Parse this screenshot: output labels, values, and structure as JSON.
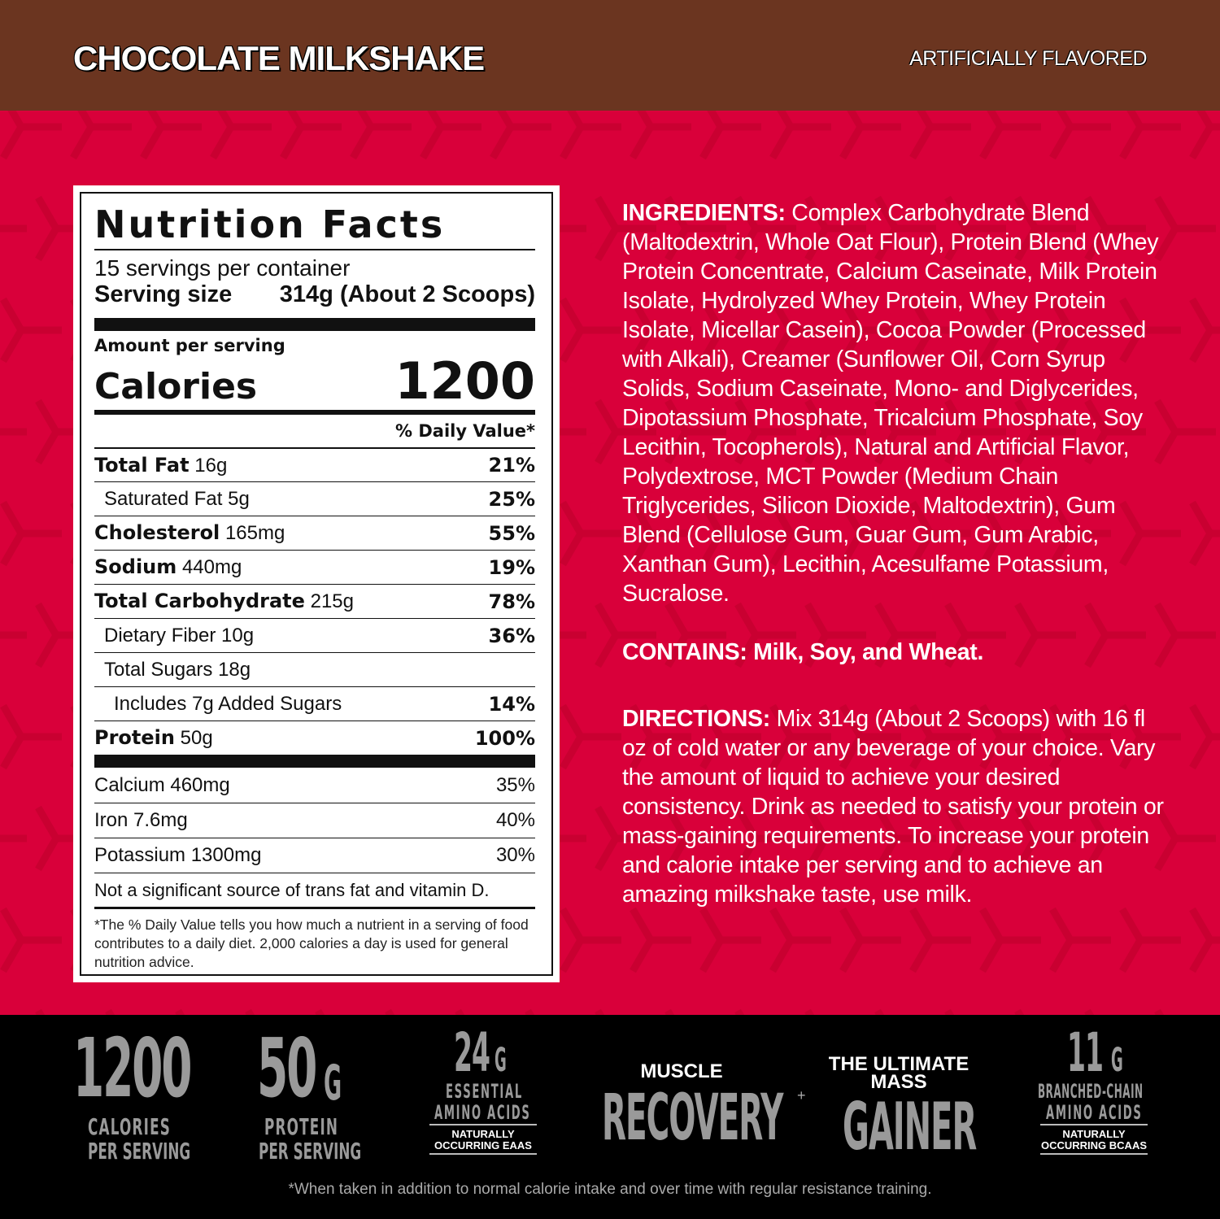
{
  "header": {
    "flavor": "CHOCOLATE MILKSHAKE",
    "flavoring": "ARTIFICIALLY FLAVORED"
  },
  "colors": {
    "header_bg": "#6b3520",
    "panel_bg": "#d9003a",
    "footer_bg": "#000000"
  },
  "nutrition": {
    "title": "Nutrition Facts",
    "servings": "15 servings per container",
    "serving_size_label": "Serving size",
    "serving_size_value": "314g (About 2 Scoops)",
    "amount_per_serving": "Amount per serving",
    "calories_label": "Calories",
    "calories_value": "1200",
    "dv_header": "% Daily Value*",
    "rows": [
      {
        "name": "Total Fat",
        "amount": "16g",
        "dv": "21%",
        "bold": true,
        "indent": 0
      },
      {
        "name": "Saturated Fat",
        "amount": "5g",
        "dv": "25%",
        "bold": false,
        "indent": 1
      },
      {
        "name": "Cholesterol",
        "amount": "165mg",
        "dv": "55%",
        "bold": true,
        "indent": 0
      },
      {
        "name": "Sodium",
        "amount": "440mg",
        "dv": "19%",
        "bold": true,
        "indent": 0
      },
      {
        "name": "Total Carbohydrate",
        "amount": "215g",
        "dv": "78%",
        "bold": true,
        "indent": 0
      },
      {
        "name": "Dietary Fiber",
        "amount": "10g",
        "dv": "36%",
        "bold": false,
        "indent": 1
      },
      {
        "name": "Total Sugars",
        "amount": "18g",
        "dv": "",
        "bold": false,
        "indent": 1
      },
      {
        "name": "Includes 7g Added Sugars",
        "amount": "",
        "dv": "14%",
        "bold": false,
        "indent": 2
      },
      {
        "name": "Protein",
        "amount": "50g",
        "dv": "100%",
        "bold": true,
        "indent": 0
      }
    ],
    "minerals": [
      {
        "name": "Calcium 460mg",
        "dv": "35%"
      },
      {
        "name": "Iron 7.6mg",
        "dv": "40%"
      },
      {
        "name": "Potassium 1300mg",
        "dv": "30%"
      }
    ],
    "note": "Not a significant source of trans fat and vitamin D.",
    "footnote": "*The % Daily Value tells you how much a nutrient in a serving of food contributes to a daily diet. 2,000 calories a day is used for general nutrition advice."
  },
  "ingredients": {
    "label": "INGREDIENTS:",
    "text": " Complex Carbohydrate Blend (Maltodextrin, Whole Oat Flour), Protein Blend (Whey Protein Concentrate, Calcium Caseinate, Milk Protein Isolate, Hydrolyzed Whey Protein, Whey Protein Isolate, Micellar Casein), Cocoa Powder (Processed with Alkali), Creamer (Sunflower Oil, Corn Syrup Solids, Sodium Caseinate, Mono- and Diglycerides, Dipotassium Phosphate, Tricalcium Phosphate, Soy Lecithin, Tocopherols), Natural and Artificial Flavor, Polydextrose, MCT Powder (Medium Chain Triglycerides, Silicon Dioxide, Maltodextrin), Gum Blend (Cellulose Gum, Guar Gum, Gum Arabic, Xanthan Gum), Lecithin, Acesulfame Potassium, Sucralose."
  },
  "contains": {
    "label": "CONTAINS:",
    "text": " Milk, Soy, and Wheat."
  },
  "directions": {
    "label": "DIRECTIONS:",
    "text": " Mix 314g (About 2 Scoops) with 16 fl oz of cold water or any beverage of your choice. Vary the amount of liquid to achieve your desired consistency. Drink as needed to satisfy your protein or mass-gaining requirements. To increase your protein and calorie intake per serving and to achieve an amazing milkshake taste, use milk."
  },
  "badges": {
    "calories": {
      "value": "1200",
      "line1": "CALORIES",
      "line2": "PER SERVING"
    },
    "protein": {
      "value": "50",
      "unit": "G",
      "line1": "PROTEIN",
      "line2": "PER SERVING"
    },
    "eaa": {
      "value": "24",
      "unit": "G",
      "line1": "ESSENTIAL",
      "line2": "AMINO ACIDS",
      "note1": "NATURALLY",
      "note2": "OCCURRING EAAS"
    },
    "recovery": {
      "top": "MUSCLE",
      "main": "RECOVERY",
      "mark": "+"
    },
    "gainer": {
      "top1": "THE ULTIMATE",
      "top2": "MASS",
      "main": "GAINER"
    },
    "bcaa": {
      "value": "11",
      "unit": "G",
      "line1": "BRANCHED-CHAIN",
      "line2": "AMINO ACIDS",
      "note1": "NATURALLY",
      "note2": "OCCURRING BCAAS"
    }
  },
  "disclaimer": "*When taken in addition to normal calorie intake and over time with regular resistance training."
}
